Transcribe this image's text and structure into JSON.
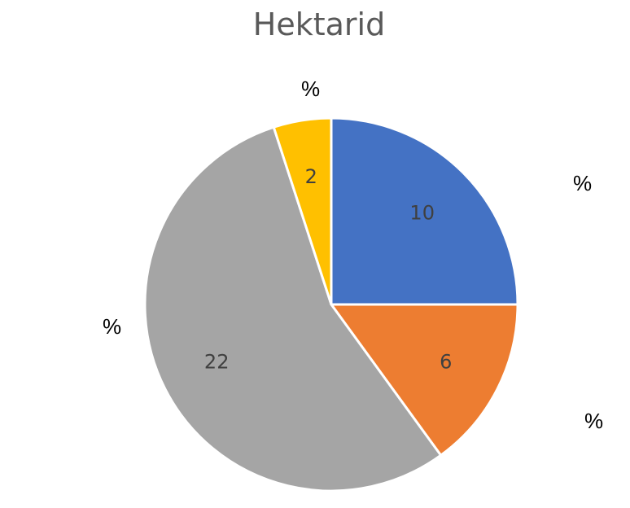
{
  "chart_data": {
    "type": "pie",
    "title": "Hektarid",
    "categories": [
      "",
      "",
      "",
      ""
    ],
    "values": [
      10,
      6,
      22,
      2
    ],
    "colors": [
      "#4472C4",
      "#ED7D31",
      "#A5A5A5",
      "#FFC000"
    ],
    "data_label_color": "#404040",
    "outside_labels": [
      "%",
      "%",
      "%",
      "%"
    ],
    "start_angle": "12 o'clock",
    "direction": "clockwise",
    "legend": "none"
  }
}
